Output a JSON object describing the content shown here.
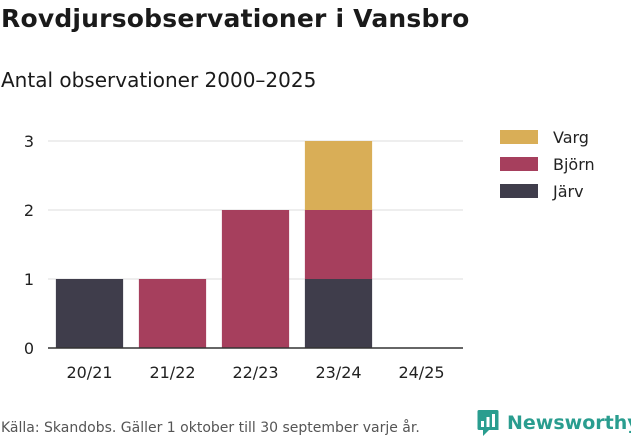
{
  "header": {
    "title": "Rovdjursobservationer i Vansbro",
    "subtitle": "Antal observationer 2000–2025"
  },
  "footer": {
    "source": "Källa: Skandobs. Gäller 1 oktober till 30 september varje år.",
    "brand": "Newsworthy"
  },
  "colors": {
    "Varg": "#d9ae57",
    "Björn": "#a63f5d",
    "Järv": "#3f3d4b",
    "grid": "#dddddd",
    "axis": "#333333",
    "brand": "#2a9d8f"
  },
  "icons": {
    "brand": "newsworthy-logo-icon"
  },
  "chart_data": {
    "type": "bar",
    "stacked": true,
    "title": "Rovdjursobservationer i Vansbro",
    "subtitle": "Antal observationer 2000–2025",
    "xlabel": "",
    "ylabel": "",
    "categories": [
      "20/21",
      "21/22",
      "22/23",
      "23/24",
      "24/25"
    ],
    "series": [
      {
        "name": "Järv",
        "values": [
          1,
          0,
          0,
          1,
          0
        ]
      },
      {
        "name": "Björn",
        "values": [
          0,
          1,
          2,
          1,
          0
        ]
      },
      {
        "name": "Varg",
        "values": [
          0,
          0,
          0,
          1,
          0
        ]
      }
    ],
    "legend_order": [
      "Varg",
      "Björn",
      "Järv"
    ],
    "ylim": [
      0,
      3
    ],
    "yticks": [
      0,
      1,
      2,
      3
    ],
    "grid": true,
    "legend_position": "right"
  }
}
